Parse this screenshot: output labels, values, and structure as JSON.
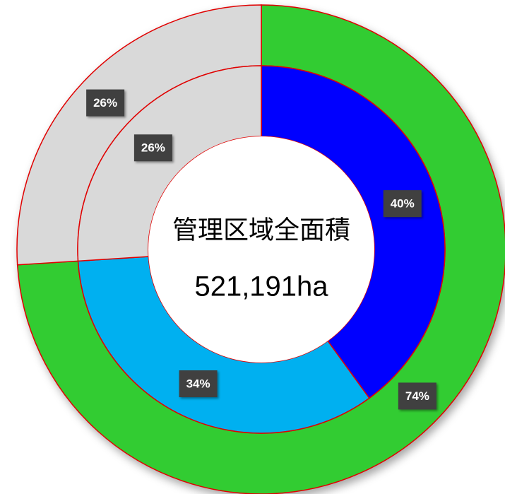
{
  "chart_data": {
    "type": "donut",
    "rings": [
      {
        "values": [
          74,
          26
        ],
        "value_labels": [
          "74%",
          "26%"
        ],
        "colors": [
          "#33cc33",
          "#d9d9d9"
        ]
      },
      {
        "values": [
          40,
          34,
          26
        ],
        "value_labels": [
          "40%",
          "34%",
          "26%"
        ],
        "colors": [
          "#0000ff",
          "#00b0f0",
          "#d9d9d9"
        ]
      }
    ],
    "stroke": "#e00000",
    "center_label": [
      "管理区域全面積",
      "521,191ha"
    ]
  }
}
